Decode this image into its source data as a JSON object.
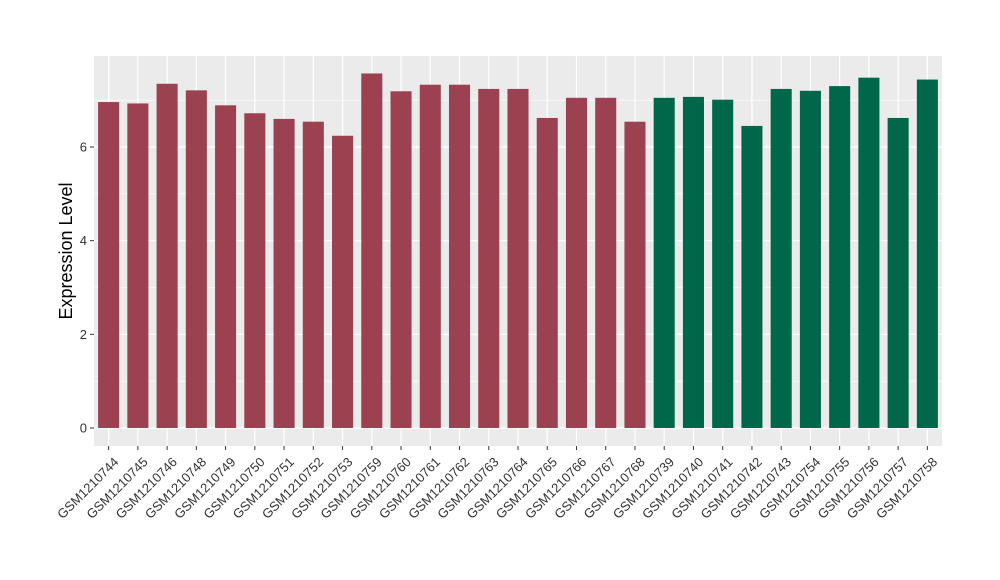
{
  "chart_data": {
    "type": "bar",
    "title": "",
    "xlabel": "",
    "ylabel": "Expression Level",
    "ylim": [
      0,
      7.9
    ],
    "yticks": [
      0,
      2,
      4,
      6
    ],
    "grid": true,
    "legend": "none",
    "colors": {
      "group1": "#9b4150",
      "group2": "#00674a",
      "panel": "#ebebeb",
      "grid": "#ffffff"
    },
    "categories": [
      "GSM1210744",
      "GSM1210745",
      "GSM1210746",
      "GSM1210748",
      "GSM1210749",
      "GSM1210750",
      "GSM1210751",
      "GSM1210752",
      "GSM1210753",
      "GSM1210759",
      "GSM1210760",
      "GSM1210761",
      "GSM1210762",
      "GSM1210763",
      "GSM1210764",
      "GSM1210765",
      "GSM1210766",
      "GSM1210767",
      "GSM1210768",
      "GSM1210739",
      "GSM1210740",
      "GSM1210741",
      "GSM1210742",
      "GSM1210743",
      "GSM1210754",
      "GSM1210755",
      "GSM1210756",
      "GSM1210757",
      "GSM1210758"
    ],
    "values": [
      6.96,
      6.93,
      7.35,
      7.21,
      6.89,
      6.72,
      6.6,
      6.54,
      6.24,
      7.57,
      7.19,
      7.33,
      7.33,
      7.24,
      7.24,
      6.62,
      7.05,
      7.05,
      6.54,
      7.05,
      7.07,
      7.01,
      6.45,
      7.24,
      7.2,
      7.3,
      7.48,
      6.62,
      7.44
    ],
    "groups": [
      1,
      1,
      1,
      1,
      1,
      1,
      1,
      1,
      1,
      1,
      1,
      1,
      1,
      1,
      1,
      1,
      1,
      1,
      1,
      2,
      2,
      2,
      2,
      2,
      2,
      2,
      2,
      2,
      2
    ]
  }
}
